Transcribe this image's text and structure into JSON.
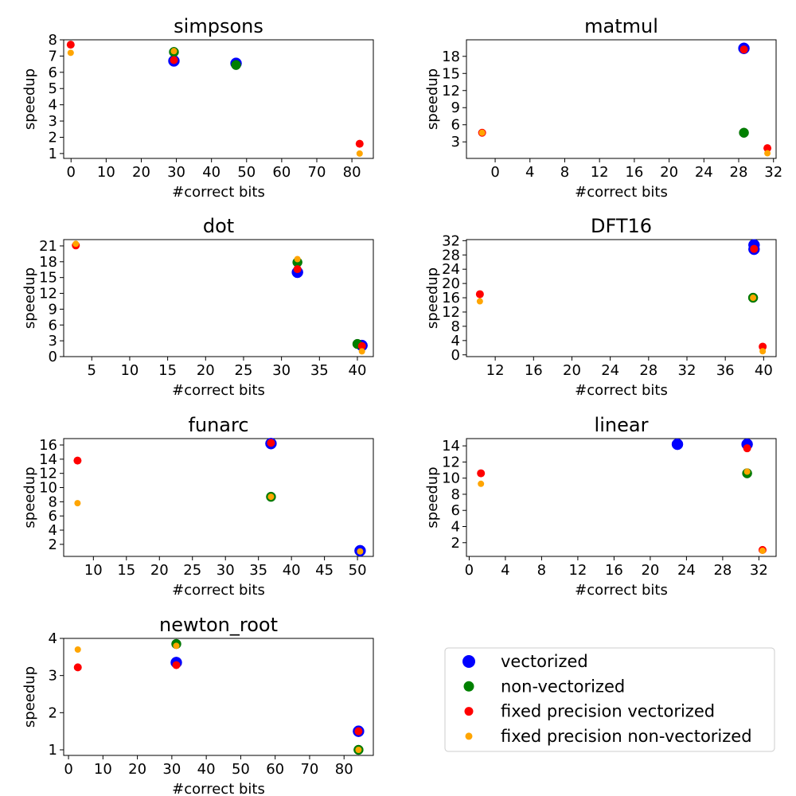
{
  "chart_data": {
    "type": "scatter",
    "legend": {
      "placement": "lower-right",
      "entries": [
        {
          "name": "vectorized",
          "color": "#0000ff"
        },
        {
          "name": "non-vectorized",
          "color": "#008000"
        },
        {
          "name": "fixed precision vectorized",
          "color": "#ff0000"
        },
        {
          "name": "fixed precision non-vectorized",
          "color": "#ffa500"
        }
      ]
    },
    "subplots": [
      {
        "title": "simpsons",
        "xlabel": "#correct bits",
        "ylabel": "speedup",
        "xlim": [
          -2.1,
          86.1
        ],
        "ylim": [
          0.7,
          8.0
        ],
        "xticks": [
          "0",
          "10",
          "20",
          "30",
          "40",
          "50",
          "60",
          "70",
          "80"
        ],
        "yticks": [
          "1",
          "2",
          "3",
          "4",
          "5",
          "6",
          "7",
          "8"
        ],
        "series": [
          {
            "name": "vectorized",
            "points": [
              [
                29.3,
                6.7
              ],
              [
                47.0,
                6.55
              ]
            ]
          },
          {
            "name": "non-vectorized",
            "points": [
              [
                29.3,
                7.25
              ],
              [
                47.0,
                6.45
              ]
            ]
          },
          {
            "name": "fixed precision vectorized",
            "points": [
              [
                -0.1,
                7.7
              ],
              [
                29.3,
                6.75
              ],
              [
                82.2,
                1.6
              ]
            ]
          },
          {
            "name": "fixed precision non-vectorized",
            "points": [
              [
                -0.1,
                7.2
              ],
              [
                29.3,
                7.3
              ],
              [
                82.2,
                1.0
              ]
            ]
          }
        ]
      },
      {
        "title": "matmul",
        "xlabel": "#correct bits",
        "ylabel": "speedup",
        "xlim": [
          -3.3,
          32.3
        ],
        "ylim": [
          0.1,
          20.9
        ],
        "xticks": [
          "0",
          "4",
          "8",
          "12",
          "16",
          "20",
          "24",
          "28",
          "32"
        ],
        "yticks": [
          "3",
          "6",
          "9",
          "12",
          "15",
          "18"
        ],
        "series": [
          {
            "name": "vectorized",
            "points": [
              [
                28.6,
                19.4
              ]
            ]
          },
          {
            "name": "non-vectorized",
            "points": [
              [
                28.6,
                4.6
              ]
            ]
          },
          {
            "name": "fixed precision vectorized",
            "points": [
              [
                -1.5,
                4.6
              ],
              [
                28.6,
                19.2
              ],
              [
                31.3,
                1.9
              ]
            ]
          },
          {
            "name": "fixed precision non-vectorized",
            "points": [
              [
                -1.5,
                4.6
              ],
              [
                31.3,
                1.0
              ]
            ]
          }
        ]
      },
      {
        "title": "dot",
        "xlabel": "#correct bits",
        "ylabel": "speedup",
        "xlim": [
          1.3,
          42.1
        ],
        "ylim": [
          0,
          22.2
        ],
        "xticks": [
          "5",
          "10",
          "15",
          "20",
          "25",
          "30",
          "35",
          "40"
        ],
        "yticks": [
          "0",
          "3",
          "6",
          "9",
          "12",
          "15",
          "18",
          "21"
        ],
        "series": [
          {
            "name": "vectorized",
            "points": [
              [
                32.1,
                16.0
              ],
              [
                40.6,
                2.1
              ]
            ]
          },
          {
            "name": "non-vectorized",
            "points": [
              [
                32.1,
                17.9
              ],
              [
                40.0,
                2.4
              ]
            ]
          },
          {
            "name": "fixed precision vectorized",
            "points": [
              [
                2.9,
                21.1
              ],
              [
                32.1,
                16.6
              ],
              [
                40.6,
                2.0
              ]
            ]
          },
          {
            "name": "fixed precision non-vectorized",
            "points": [
              [
                2.9,
                21.4
              ],
              [
                32.1,
                18.5
              ],
              [
                40.6,
                1.0
              ]
            ]
          }
        ]
      },
      {
        "title": "DFT16",
        "xlabel": "#correct bits",
        "ylabel": "speedup",
        "xlim": [
          9.0,
          41.3
        ],
        "ylim": [
          -0.5,
          32.3
        ],
        "xticks": [
          "12",
          "16",
          "20",
          "24",
          "28",
          "32",
          "36",
          "40"
        ],
        "yticks": [
          "0",
          "4",
          "8",
          "12",
          "16",
          "20",
          "24",
          "28",
          "32"
        ],
        "series": [
          {
            "name": "vectorized",
            "points": [
              [
                39.0,
                30.8
              ],
              [
                39.0,
                29.6
              ]
            ]
          },
          {
            "name": "non-vectorized",
            "points": [
              [
                38.9,
                16.0
              ]
            ]
          },
          {
            "name": "fixed precision vectorized",
            "points": [
              [
                10.4,
                17.0
              ],
              [
                39.0,
                29.7
              ],
              [
                39.9,
                2.3
              ]
            ]
          },
          {
            "name": "fixed precision non-vectorized",
            "points": [
              [
                10.4,
                15.0
              ],
              [
                38.9,
                16.0
              ],
              [
                39.9,
                1.0
              ]
            ]
          }
        ]
      },
      {
        "title": "funarc",
        "xlabel": "#correct bits",
        "ylabel": "speedup",
        "xlim": [
          5.5,
          52.4
        ],
        "ylim": [
          0.3,
          16.9
        ],
        "xticks": [
          "10",
          "15",
          "20",
          "25",
          "30",
          "35",
          "40",
          "45",
          "50"
        ],
        "yticks": [
          "2",
          "4",
          "6",
          "8",
          "10",
          "12",
          "14",
          "16"
        ],
        "series": [
          {
            "name": "vectorized",
            "points": [
              [
                36.9,
                16.2
              ],
              [
                50.4,
                1.1
              ]
            ]
          },
          {
            "name": "non-vectorized",
            "points": [
              [
                36.9,
                8.7
              ]
            ]
          },
          {
            "name": "fixed precision vectorized",
            "points": [
              [
                7.6,
                13.8
              ],
              [
                36.9,
                16.3
              ]
            ]
          },
          {
            "name": "fixed precision non-vectorized",
            "points": [
              [
                7.6,
                7.8
              ],
              [
                36.9,
                8.7
              ],
              [
                50.4,
                1.0
              ]
            ]
          }
        ]
      },
      {
        "title": "linear",
        "xlabel": "#correct bits",
        "ylabel": "speedup",
        "xlim": [
          -0.3,
          33.9
        ],
        "ylim": [
          0.3,
          14.9
        ],
        "xticks": [
          "0",
          "4",
          "8",
          "12",
          "16",
          "20",
          "24",
          "28",
          "32"
        ],
        "yticks": [
          "2",
          "4",
          "6",
          "8",
          "10",
          "12",
          "14"
        ],
        "series": [
          {
            "name": "vectorized",
            "points": [
              [
                23.0,
                14.2
              ],
              [
                30.7,
                14.2
              ]
            ]
          },
          {
            "name": "non-vectorized",
            "points": [
              [
                30.7,
                10.6
              ]
            ]
          },
          {
            "name": "fixed precision vectorized",
            "points": [
              [
                1.3,
                10.6
              ],
              [
                30.7,
                13.7
              ],
              [
                32.4,
                1.1
              ]
            ]
          },
          {
            "name": "fixed precision non-vectorized",
            "points": [
              [
                1.3,
                9.3
              ],
              [
                30.7,
                10.8
              ],
              [
                32.4,
                1.0
              ]
            ]
          }
        ]
      },
      {
        "title": "newton_root",
        "xlabel": "#correct bits",
        "ylabel": "speedup",
        "xlim": [
          -1.4,
          88.5
        ],
        "ylim": [
          0.85,
          4.0
        ],
        "xticks": [
          "0",
          "10",
          "20",
          "30",
          "40",
          "50",
          "60",
          "70",
          "80"
        ],
        "yticks": [
          "1",
          "2",
          "3",
          "4"
        ],
        "series": [
          {
            "name": "vectorized",
            "points": [
              [
                31.3,
                3.35
              ],
              [
                84.2,
                1.5
              ]
            ]
          },
          {
            "name": "non-vectorized",
            "points": [
              [
                31.3,
                3.85
              ],
              [
                84.2,
                1.0
              ]
            ]
          },
          {
            "name": "fixed precision vectorized",
            "points": [
              [
                2.7,
                3.22
              ],
              [
                31.3,
                3.28
              ],
              [
                84.2,
                1.5
              ]
            ]
          },
          {
            "name": "fixed precision non-vectorized",
            "points": [
              [
                2.7,
                3.7
              ],
              [
                31.3,
                3.8
              ],
              [
                84.2,
                1.0
              ]
            ]
          }
        ]
      }
    ]
  }
}
